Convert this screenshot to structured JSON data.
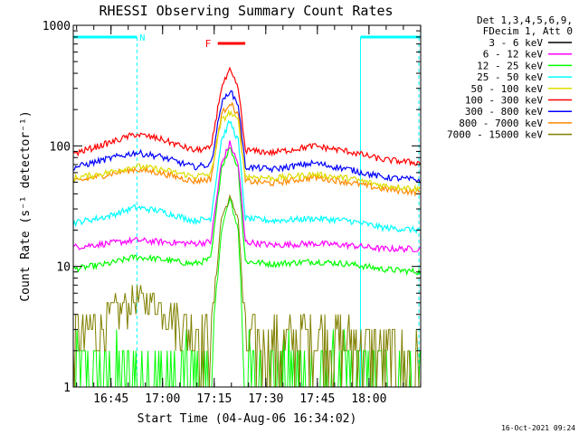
{
  "chart_data": {
    "type": "line",
    "title": "RHESSI Observing Summary Count Rates",
    "xlabel": "Start Time (04-Aug-06 16:34:02)",
    "ylabel": "Count Rate (s⁻¹ detector⁻¹)",
    "yscale": "log",
    "ylim": [
      1,
      1000
    ],
    "xlim_minutes": [
      0,
      101
    ],
    "x_tick_labels": [
      "16:45",
      "17:00",
      "17:15",
      "17:30",
      "17:45",
      "18:00"
    ],
    "x_tick_minutes": [
      10.97,
      25.97,
      40.97,
      55.97,
      70.97,
      85.97
    ],
    "y_tick_labels": [
      "1",
      "10",
      "100",
      "1000"
    ],
    "y_tick_values": [
      1,
      10,
      100,
      1000
    ],
    "grid": false,
    "legend_header": [
      "Det 1,3,4,5,6,9,",
      "FDecim 1, Att 0"
    ],
    "legend_placement": "right",
    "annotations": [
      {
        "label": "N",
        "type": "night",
        "color": "#00ffff",
        "ranges_minutes": [
          [
            0,
            18.5
          ],
          [
            83.5,
            101
          ]
        ]
      },
      {
        "label": "F",
        "type": "flare",
        "color": "#ff0000",
        "range_minutes": [
          42,
          50
        ]
      }
    ],
    "footer_timestamp": "16-Oct-2021 09:24",
    "series": [
      {
        "name": "3 - 6 keV",
        "color": "#000000",
        "display_color": "#00ff00",
        "peak_minutes": 45.5,
        "x": [
          0,
          10,
          18,
          25,
          35,
          40,
          43,
          45.5,
          48,
          50,
          58,
          70,
          80,
          90,
          101
        ],
        "y": [
          1,
          1,
          1,
          1,
          1,
          1,
          20,
          36,
          20,
          1,
          1,
          1,
          1,
          1,
          1
        ]
      },
      {
        "name": "6 - 12 keV",
        "color": "#ff00ff",
        "x": [
          0,
          10,
          18,
          25,
          35,
          40,
          43,
          45.5,
          48,
          50,
          58,
          70,
          80,
          90,
          101
        ],
        "y": [
          14.5,
          15.5,
          16.5,
          16,
          15.5,
          16,
          70,
          105,
          70,
          16,
          15,
          15.5,
          15,
          14,
          14
        ]
      },
      {
        "name": "12 - 25 keV",
        "color": "#00ff00",
        "x": [
          0,
          10,
          18,
          25,
          35,
          40,
          43,
          45.5,
          48,
          50,
          58,
          70,
          80,
          90,
          101
        ],
        "y": [
          9.5,
          10.5,
          12,
          11.5,
          10.5,
          11.5,
          65,
          98,
          65,
          11,
          10.5,
          11,
          10.5,
          9.5,
          9
        ]
      },
      {
        "name": "25 - 50 keV",
        "color": "#00ffff",
        "x": [
          0,
          10,
          18,
          25,
          35,
          40,
          43,
          45.5,
          48,
          50,
          58,
          70,
          80,
          90,
          101
        ],
        "y": [
          23,
          26,
          31,
          29,
          24,
          25,
          110,
          160,
          110,
          25,
          24,
          25,
          24,
          21,
          20
        ]
      },
      {
        "name": "50 - 100 keV",
        "color": "#dddd00",
        "x": [
          0,
          10,
          18,
          25,
          35,
          40,
          43,
          45.5,
          48,
          50,
          58,
          70,
          80,
          90,
          101
        ],
        "y": [
          54,
          60,
          68,
          64,
          56,
          58,
          160,
          190,
          160,
          56,
          54,
          58,
          54,
          47,
          44
        ]
      },
      {
        "name": "100 - 300 keV",
        "color": "#ff0000",
        "x": [
          0,
          10,
          18,
          25,
          35,
          40,
          43,
          45.5,
          48,
          50,
          58,
          70,
          80,
          90,
          101
        ],
        "y": [
          86,
          105,
          125,
          115,
          92,
          95,
          300,
          420,
          300,
          92,
          88,
          100,
          90,
          77,
          72
        ]
      },
      {
        "name": "300 - 800 keV",
        "color": "#0000ff",
        "x": [
          0,
          10,
          18,
          25,
          35,
          40,
          43,
          45.5,
          48,
          50,
          58,
          70,
          80,
          90,
          101
        ],
        "y": [
          66,
          78,
          88,
          82,
          67,
          70,
          220,
          290,
          220,
          67,
          64,
          72,
          64,
          55,
          52
        ]
      },
      {
        "name": "800 - 7000 keV",
        "color": "#ff8800",
        "x": [
          0,
          10,
          18,
          25,
          35,
          40,
          43,
          45.5,
          48,
          50,
          58,
          70,
          80,
          90,
          101
        ],
        "y": [
          50,
          58,
          64,
          60,
          51,
          53,
          180,
          230,
          180,
          51,
          49,
          55,
          50,
          44,
          41
        ]
      },
      {
        "name": "7000 - 15000 keV",
        "color": "#808000",
        "x": [
          0,
          10,
          18,
          25,
          35,
          40,
          43,
          45.5,
          48,
          50,
          58,
          70,
          80,
          90,
          101
        ],
        "y": [
          2.5,
          3.5,
          5.5,
          5,
          3,
          2.5,
          25,
          37,
          25,
          2.5,
          2.3,
          2.8,
          2.5,
          2,
          1.6
        ]
      }
    ]
  }
}
